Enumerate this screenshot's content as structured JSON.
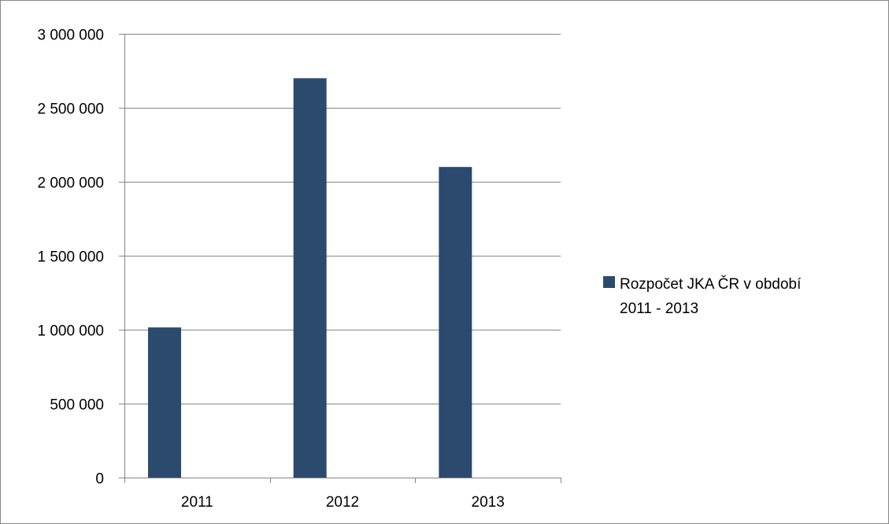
{
  "chart_data": {
    "type": "bar",
    "categories": [
      "2011",
      "2012",
      "2013"
    ],
    "series": [
      {
        "name": "Rozpočet JKA ČR v období 2011 - 2013",
        "legend_lines": [
          "Rozpočet JKA ČR v období",
          "2011 - 2013"
        ],
        "values": [
          1015000,
          2700000,
          2100000
        ],
        "color": "#2c4a6e"
      }
    ],
    "yticks": [
      0,
      500000,
      1000000,
      1500000,
      2000000,
      2500000,
      3000000
    ],
    "ytick_labels": [
      "0",
      "500 000",
      "1 000 000",
      "1 500 000",
      "2 000 000",
      "2 500 000",
      "3 000 000"
    ],
    "ylim": [
      0,
      3000000
    ],
    "grid": true,
    "legend_position": "right",
    "title": "",
    "xlabel": "",
    "ylabel": ""
  }
}
